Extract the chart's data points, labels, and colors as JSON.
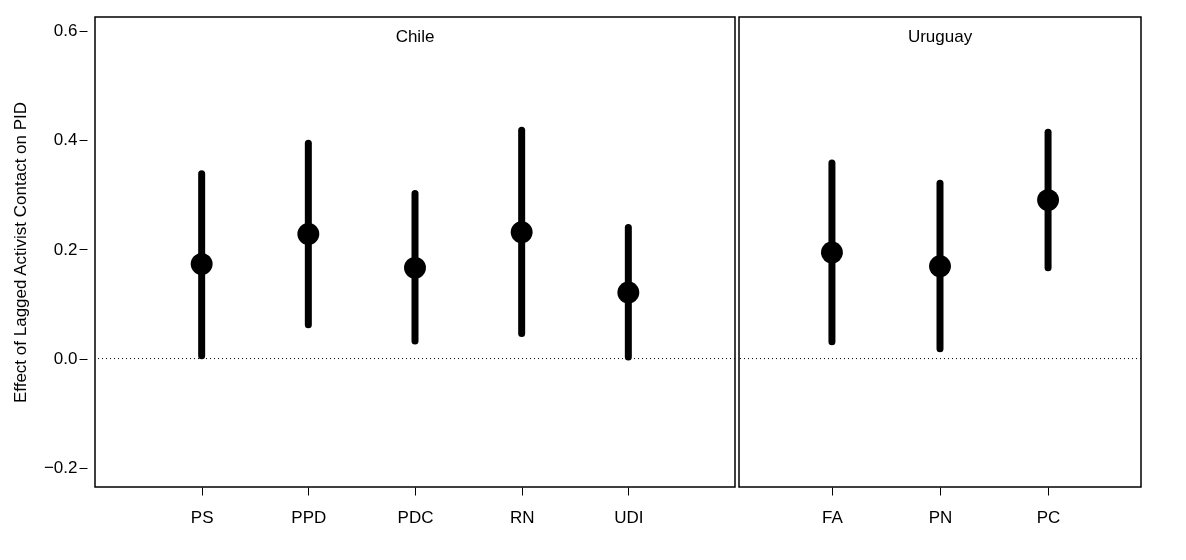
{
  "chart_data": [
    {
      "type": "scatter",
      "title": "Chile",
      "ylabel": "Effect of Lagged Activist Contact on PID",
      "categories": [
        "PS",
        "PPD",
        "PDC",
        "RN",
        "UDI"
      ],
      "marker": "circle",
      "series": [
        {
          "color": "#000000",
          "values": [
            0.173,
            0.228,
            0.166,
            0.231,
            0.121
          ],
          "errors": [
            [
              0.005,
              0.338
            ],
            [
              0.062,
              0.394
            ],
            [
              0.032,
              0.302
            ],
            [
              0.046,
              0.418
            ],
            [
              0.003,
              0.24
            ]
          ]
        }
      ],
      "ylim": [
        -0.235,
        0.625
      ],
      "yticks": [
        {
          "value": -0.2,
          "label": "−0.2"
        },
        {
          "value": 0,
          "label": "0.0"
        },
        0.2,
        0.4,
        0.6
      ],
      "ref_lines": [
        {
          "axis": "y",
          "value": 0,
          "line_style": "dotted"
        }
      ]
    },
    {
      "type": "scatter",
      "title": "Uruguay",
      "categories": [
        "FA",
        "PN",
        "PC"
      ],
      "marker": "circle",
      "tick_labels": "x",
      "series": [
        {
          "color": "#000000",
          "values": [
            0.194,
            0.169,
            0.29
          ],
          "errors": [
            [
              0.031,
              0.358
            ],
            [
              0.018,
              0.321
            ],
            [
              0.166,
              0.414
            ]
          ]
        }
      ],
      "ylim": [
        -0.235,
        0.625
      ],
      "ref_lines": [
        {
          "axis": "y",
          "value": 0,
          "line_style": "dotted"
        }
      ]
    }
  ]
}
